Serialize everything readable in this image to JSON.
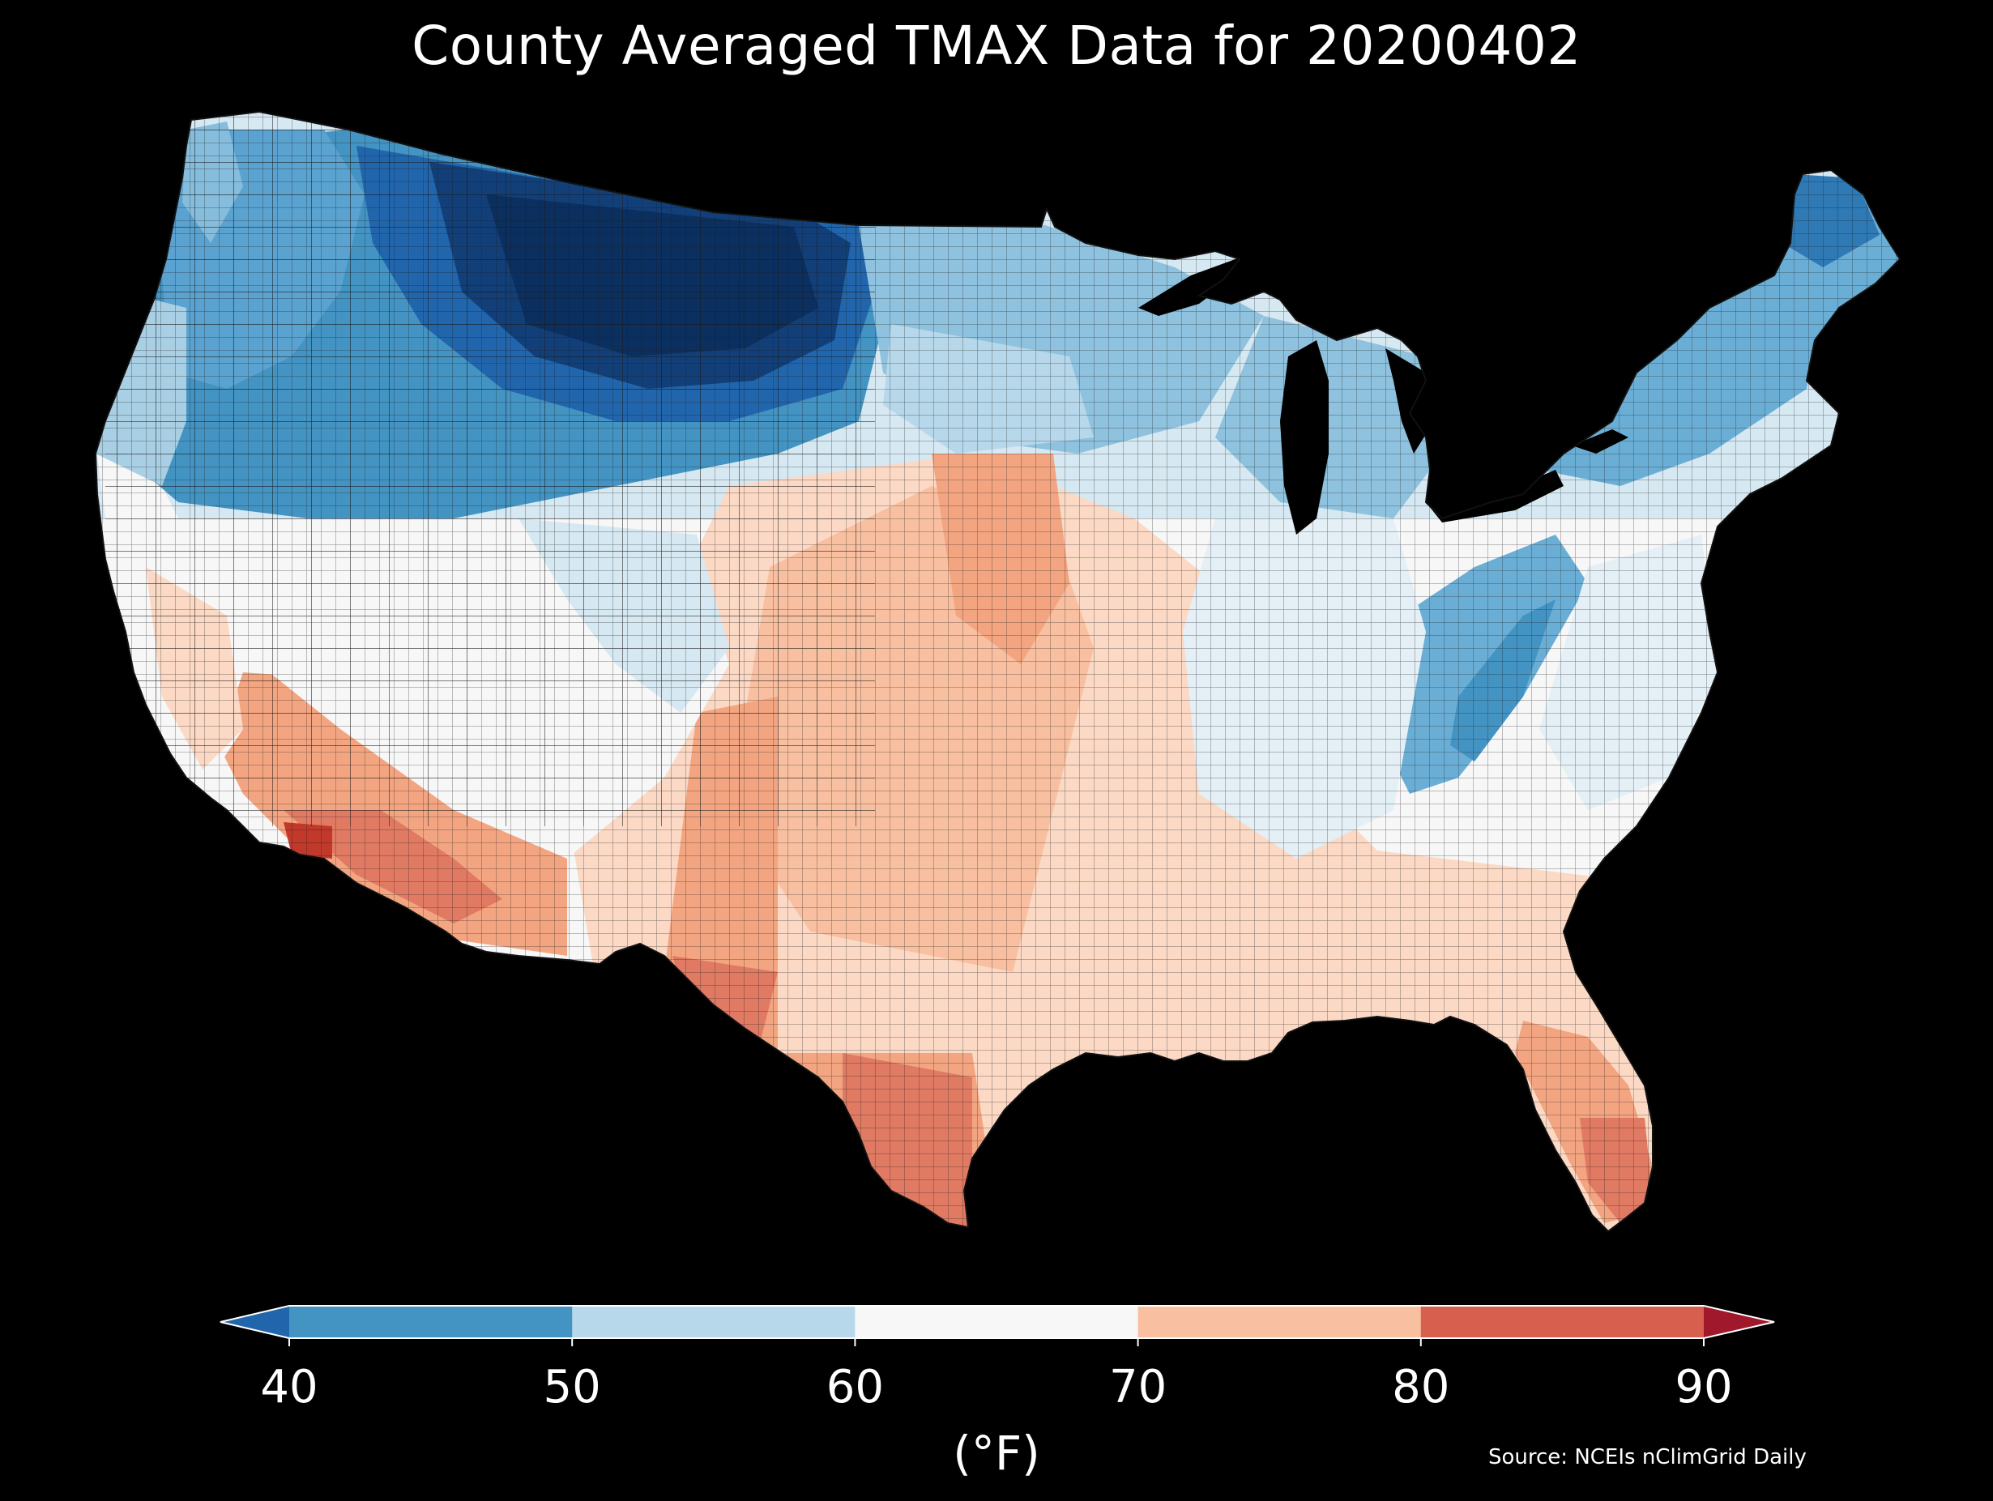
{
  "title": "County Averaged TMAX Data for 20200402",
  "colorbar": {
    "unit_label": "(°F)",
    "ticks": [
      "40",
      "50",
      "60",
      "70",
      "80",
      "90"
    ],
    "extend": "both",
    "bins": [
      {
        "range": "<40",
        "color": "#2166ac"
      },
      {
        "range": "40-50",
        "color": "#4393c3"
      },
      {
        "range": "50-60",
        "color": "#b7d8ea"
      },
      {
        "range": "60-70",
        "color": "#f7f7f7"
      },
      {
        "range": "70-80",
        "color": "#f8c0a0"
      },
      {
        "range": "80-90",
        "color": "#d6604d"
      },
      {
        "range": ">90",
        "color": "#a0182c"
      }
    ]
  },
  "source": "Source: NCEIs nClimGrid Daily",
  "map": {
    "region": "Contiguous United States",
    "background_color": "#000000",
    "county_border_color": "#1a1a1a"
  }
}
